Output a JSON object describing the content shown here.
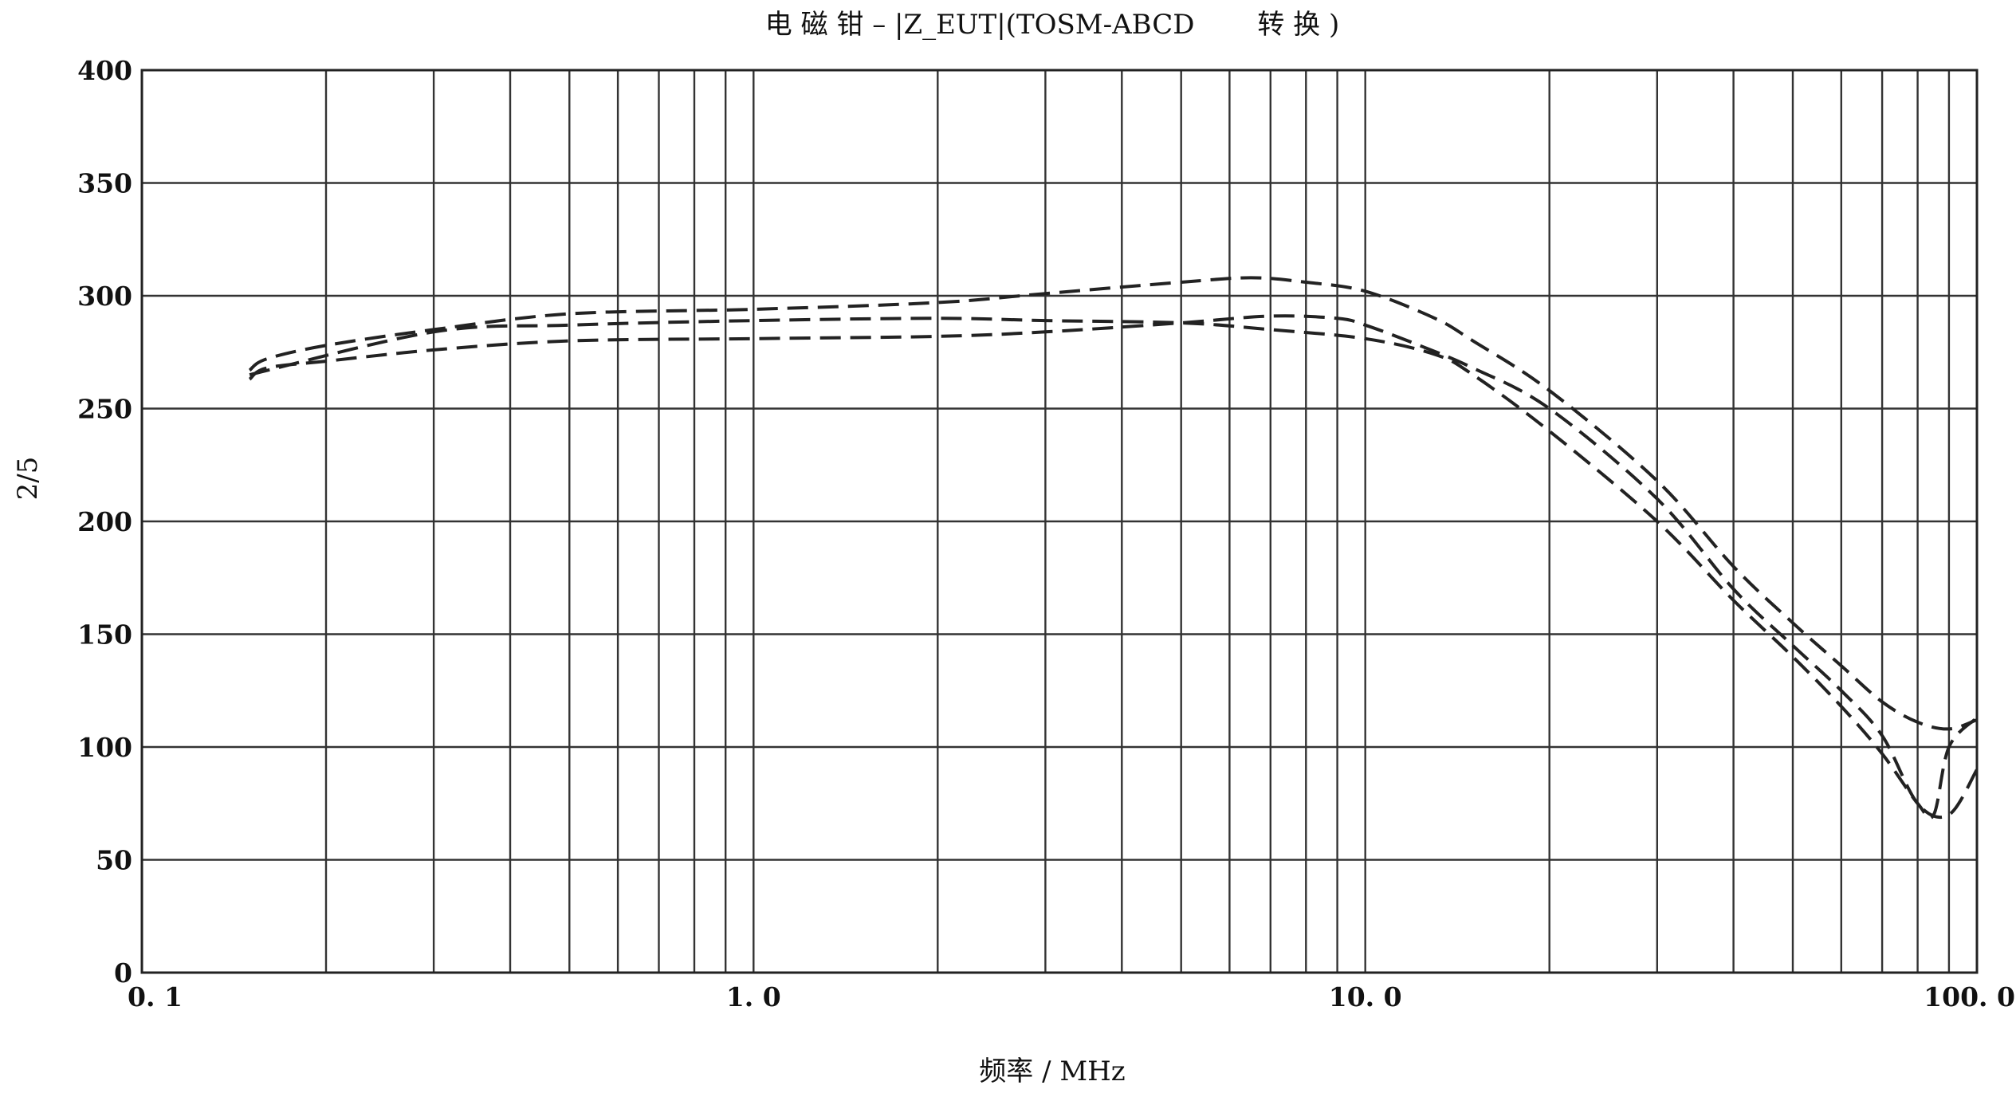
{
  "chart_data": {
    "type": "line",
    "title": "电 磁 钳 – |Z_EUT|(TOSM-ABCD　　 转 换 )",
    "xlabel": "频率 / MHz",
    "ylabel": "2/5",
    "x_scale": "log",
    "xlim": [
      0.1,
      100.0
    ],
    "ylim": [
      0,
      400
    ],
    "x_ticks": [
      {
        "value": 0.1,
        "label": "0. 1"
      },
      {
        "value": 1.0,
        "label": "1. 0"
      },
      {
        "value": 10.0,
        "label": "10. 0"
      },
      {
        "value": 100.0,
        "label": "100. 0"
      }
    ],
    "y_ticks": [
      {
        "value": 0,
        "label": "0"
      },
      {
        "value": 50,
        "label": "50"
      },
      {
        "value": 100,
        "label": "100"
      },
      {
        "value": 150,
        "label": "150"
      },
      {
        "value": 200,
        "label": "200"
      },
      {
        "value": 250,
        "label": "250"
      },
      {
        "value": 300,
        "label": "300"
      },
      {
        "value": 350,
        "label": "350"
      },
      {
        "value": 400,
        "label": "400"
      }
    ],
    "grid": true,
    "series": [
      {
        "x": [
          0.15,
          0.16,
          0.2,
          0.3,
          0.5,
          1.0,
          2.0,
          3.0,
          5.0,
          6.5,
          8.0,
          10.0,
          13.0,
          15.0,
          20.0,
          30.0,
          40.0,
          50.0,
          60.0,
          70.0,
          80.0,
          90.0,
          100.0
        ],
        "values": [
          267,
          272,
          278,
          285,
          292,
          294,
          297,
          301,
          306,
          308,
          306,
          302,
          290,
          280,
          258,
          218,
          180,
          155,
          136,
          120,
          111,
          108,
          112
        ]
      },
      {
        "x": [
          0.15,
          0.16,
          0.2,
          0.3,
          0.5,
          1.0,
          2.0,
          3.0,
          5.0,
          7.0,
          9.0,
          10.0,
          12.0,
          15.0,
          20.0,
          30.0,
          40.0,
          50.0,
          60.0,
          70.0,
          80.0,
          90.0,
          100.0
        ],
        "values": [
          263,
          268,
          271,
          276,
          280,
          281,
          282,
          284,
          288,
          291,
          290,
          287,
          279,
          268,
          250,
          210,
          170,
          145,
          125,
          105,
          75,
          70,
          90
        ]
      },
      {
        "x": [
          0.15,
          0.3,
          0.5,
          1.0,
          2.0,
          3.0,
          5.0,
          7.0,
          10.0,
          13.0,
          15.0,
          20.0,
          30.0,
          40.0,
          50.0,
          60.0,
          70.0,
          80.0,
          85.0,
          90.0,
          100.0
        ],
        "values": [
          265,
          284,
          287,
          289,
          290,
          289,
          288,
          285,
          281,
          274,
          265,
          240,
          200,
          165,
          140,
          118,
          97,
          75,
          70,
          100,
          113
        ]
      }
    ]
  }
}
